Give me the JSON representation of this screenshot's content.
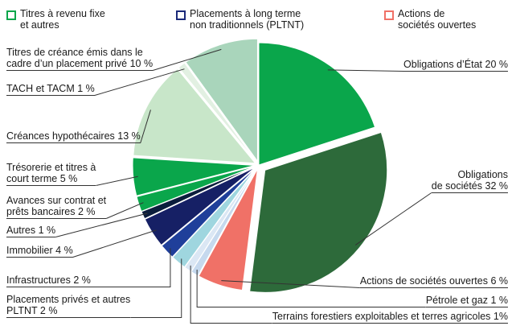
{
  "chart_data": {
    "type": "pie",
    "legend": [
      {
        "name": "Titres à revenu fixe\net autres",
        "color": "#0aa64b"
      },
      {
        "name": "Placements à long terme\nnon traditionnels (PLTNT)",
        "color": "#1b2a7a"
      },
      {
        "name": "Actions de\nsociétés ouvertes",
        "color": "#f07167"
      }
    ],
    "categories": [
      "Obligations d’État",
      "Obligations\nde sociétés",
      "Actions de sociétés ouvertes",
      "Pétrole et gaz",
      "Terrains forestiers exploitables et terres agricoles",
      "Placements privés et autres\nPLTNT",
      "Infrastructures",
      "Immobilier",
      "Autres",
      "Avances sur contrat et\nprêts bancaires",
      "Trésorerie et titres à\ncourt terme",
      "Créances hypothécaires",
      "TACH et TACM",
      "Titres de créance émis dans le\ncadre d’un placement privé"
    ],
    "values": [
      20,
      32,
      6,
      1,
      1,
      2,
      2,
      4,
      1,
      2,
      5,
      13,
      1,
      10
    ],
    "value_labels": [
      "20 %",
      "32 %",
      "6 %",
      "1 %",
      "1%",
      "2 %",
      "2 %",
      "4 %",
      "1 %",
      "2 %",
      "5 %",
      "13 %",
      "1 %",
      "10 %"
    ],
    "colors": [
      "#0aa64b",
      "#2d6a3a",
      "#f07167",
      "#c6d9ee",
      "#dbe7f4",
      "#9fd6df",
      "#1f3f9a",
      "#162065",
      "#0b1d3c",
      "#0aa64b",
      "#0aa64b",
      "#c8e6c9",
      "#e2f0e2",
      "#a9d5bb"
    ]
  }
}
